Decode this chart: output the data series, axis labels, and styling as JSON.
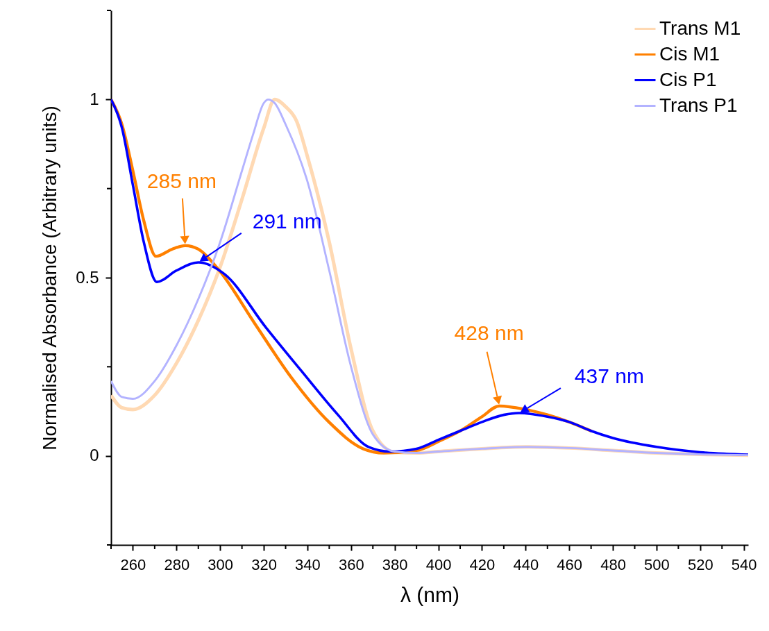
{
  "chart_data": {
    "type": "line",
    "xlabel": "λ (nm)",
    "ylabel": "Normalised Absorbance (Arbitrary units)",
    "xlim": [
      250,
      542
    ],
    "ylim": [
      -0.25,
      1.25
    ],
    "xticks": [
      {
        "value": 250,
        "label": null
      },
      260,
      {
        "value": 270,
        "label": null
      },
      280,
      {
        "value": 290,
        "label": null
      },
      300,
      {
        "value": 310,
        "label": null
      },
      320,
      {
        "value": 330,
        "label": null
      },
      340,
      {
        "value": 350,
        "label": null
      },
      360,
      {
        "value": 370,
        "label": null
      },
      380,
      {
        "value": 390,
        "label": null
      },
      400,
      {
        "value": 410,
        "label": null
      },
      420,
      {
        "value": 430,
        "label": null
      },
      440,
      {
        "value": 450,
        "label": null
      },
      460,
      {
        "value": 470,
        "label": null
      },
      480,
      {
        "value": 490,
        "label": null
      },
      500,
      {
        "value": 510,
        "label": null
      },
      520,
      {
        "value": 530,
        "label": null
      },
      540
    ],
    "yticks": [
      {
        "value": -0.25,
        "label": null
      },
      0,
      {
        "value": 0.25,
        "label": null
      },
      0.5,
      {
        "value": 0.75,
        "label": null
      },
      1,
      {
        "value": 1.25,
        "label": null
      }
    ],
    "grid": false,
    "legend": "top right",
    "marker": "none",
    "line_style": "solid",
    "series": [
      {
        "name": "Trans M1",
        "color": "#ffd9b3",
        "x": [
          250,
          255,
          260,
          270,
          280,
          290,
          300,
          310,
          320,
          325,
          330,
          335,
          340,
          350,
          360,
          370,
          380,
          390,
          400,
          420,
          440,
          460,
          480,
          500,
          520,
          542
        ],
        "values": [
          0.17,
          0.135,
          0.13,
          0.17,
          0.26,
          0.38,
          0.53,
          0.72,
          0.92,
          1.0,
          0.98,
          0.94,
          0.84,
          0.6,
          0.3,
          0.07,
          0.01,
          0.008,
          0.012,
          0.02,
          0.025,
          0.022,
          0.015,
          0.008,
          0.004,
          0.002
        ]
      },
      {
        "name": "Cis M1",
        "color": "#ff8000",
        "x": [
          250,
          255,
          260,
          265,
          270.6,
          278,
          284,
          290,
          299.6,
          316,
          332.6,
          350,
          365.5,
          375,
          390,
          400,
          410,
          420,
          428,
          440,
          450,
          460,
          470
        ],
        "values": [
          1.0,
          0.93,
          0.8,
          0.66,
          0.56,
          0.58,
          0.59,
          0.58,
          0.52,
          0.37,
          0.22,
          0.094,
          0.02,
          0.008,
          0.015,
          0.04,
          0.07,
          0.11,
          0.14,
          0.13,
          0.115,
          0.095,
          0.07
        ]
      },
      {
        "name": "Cis P1",
        "color": "#0000ff",
        "x": [
          250,
          255,
          260,
          265,
          271,
          280,
          290,
          302,
          321,
          337,
          354,
          368,
          378,
          390,
          400,
          410,
          420,
          430,
          437,
          450,
          460,
          470,
          480,
          500,
          520,
          542
        ],
        "values": [
          1.0,
          0.92,
          0.76,
          0.6,
          0.488,
          0.52,
          0.543,
          0.51,
          0.36,
          0.24,
          0.115,
          0.025,
          0.012,
          0.02,
          0.045,
          0.07,
          0.095,
          0.115,
          0.12,
          0.11,
          0.095,
          0.07,
          0.05,
          0.025,
          0.01,
          0.003
        ]
      },
      {
        "name": "Trans P1",
        "color": "#b3b3ff",
        "x": [
          250,
          255,
          260,
          270,
          280,
          290,
          300,
          310,
          315,
          320,
          322,
          325,
          330,
          340,
          350,
          360,
          370,
          380,
          390,
          400,
          420,
          440,
          460,
          480,
          500,
          520,
          542
        ],
        "values": [
          0.21,
          0.165,
          0.16,
          0.21,
          0.31,
          0.44,
          0.6,
          0.8,
          0.9,
          0.99,
          1.0,
          0.99,
          0.93,
          0.77,
          0.52,
          0.25,
          0.06,
          0.012,
          0.008,
          0.012,
          0.02,
          0.025,
          0.022,
          0.015,
          0.008,
          0.004,
          0.002
        ]
      }
    ],
    "annotations": [
      {
        "text": "285 nm",
        "x": 284,
        "y": 0.59
      },
      {
        "text": "291 nm",
        "x": 290,
        "y": 0.543
      },
      {
        "text": "428 nm",
        "x": 428,
        "y": 0.14
      },
      {
        "text": "437 nm",
        "x": 437,
        "y": 0.12
      }
    ]
  }
}
